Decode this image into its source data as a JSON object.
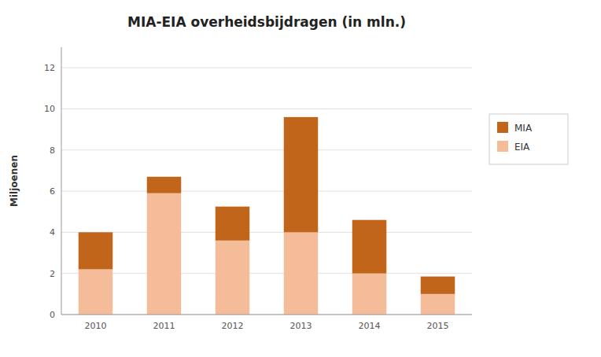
{
  "chart_data": {
    "type": "bar",
    "title": "MIA-EIA overheidsbijdragen (in mln.)",
    "ylabel": "Miljoenen",
    "categories": [
      "2010",
      "2011",
      "2012",
      "2013",
      "2014",
      "2015"
    ],
    "series": [
      {
        "name": "EIA",
        "color": "#F5BC9A",
        "values": [
          2.2,
          5.9,
          3.6,
          4.0,
          2.0,
          1.0
        ]
      },
      {
        "name": "MIA",
        "color": "#C0651A",
        "values": [
          1.8,
          0.8,
          1.65,
          5.6,
          2.6,
          0.85
        ]
      }
    ],
    "stacked": true,
    "ylim": [
      0,
      13
    ],
    "yticks": [
      0,
      2,
      4,
      6,
      8,
      10,
      12
    ],
    "grid": true,
    "legend": "right"
  }
}
